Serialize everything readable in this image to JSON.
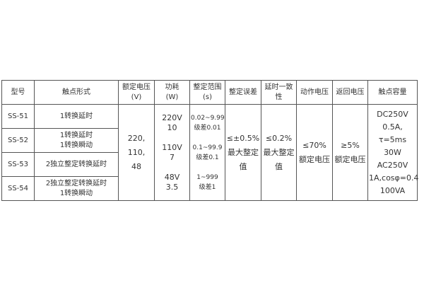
{
  "headers": [
    [
      "型号"
    ],
    [
      "触点形式"
    ],
    [
      "额定电压",
      "(V)"
    ],
    [
      "功耗",
      "(W)"
    ],
    [
      "整定范围",
      "(s)"
    ],
    [
      "整定误差"
    ],
    [
      "延时一致",
      "性"
    ],
    [
      "动作电压"
    ],
    [
      "返回电压"
    ],
    [
      "触点容量"
    ]
  ],
  "rows": [
    {
      "model": "SS-51",
      "contact": [
        "1转换延时"
      ]
    },
    {
      "model": "SS-52",
      "contact": [
        "1转换延时",
        "1转换瞬动"
      ]
    },
    {
      "model": "SS-53",
      "contact": [
        "2独立整定转换延时"
      ]
    },
    {
      "model": "SS-54",
      "contact": [
        "2独立整定转换延时",
        "1转换瞬动"
      ]
    }
  ],
  "shared": {
    "rated_voltage": [
      "220,",
      "110,",
      "48"
    ],
    "power": [
      "220V",
      "10",
      "110V",
      "7",
      "48V",
      "3.5"
    ],
    "range": [
      "0.02~9.99",
      "级差0.01",
      "0.1~99.9",
      "级差0.1",
      "1~999",
      "级差1"
    ],
    "setting_error": [
      "≤±0.5%",
      "最大整定",
      "值"
    ],
    "delay_consistency": [
      "≤0.2%",
      "最大整定",
      "值"
    ],
    "operate_voltage": [
      "≤70%",
      "额定电压"
    ],
    "return_voltage": [
      "≥5%",
      "额定电压"
    ],
    "contact_capacity": [
      "DC250V",
      "0.5A, τ=5ms",
      "30W",
      "AC250V",
      "1A,cosφ=0.4",
      "100VA"
    ]
  }
}
